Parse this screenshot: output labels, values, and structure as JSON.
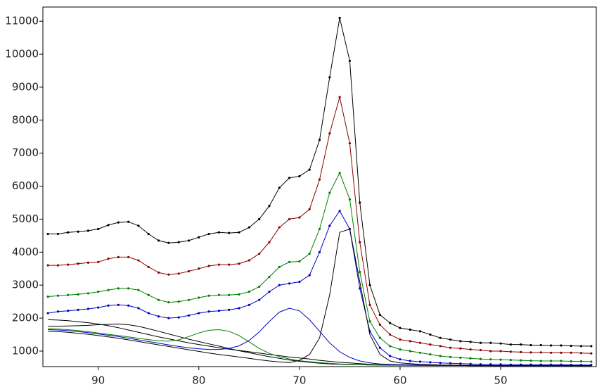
{
  "chart_data": {
    "type": "line",
    "x": [
      95,
      94,
      93,
      92,
      91,
      90,
      89,
      88,
      87,
      86,
      85,
      84,
      83,
      82,
      81,
      80,
      79,
      78,
      77,
      76,
      75,
      74,
      73,
      72,
      71,
      70,
      69,
      68,
      67,
      66,
      65,
      64,
      63,
      62,
      61,
      60,
      59,
      58,
      57,
      56,
      55,
      54,
      53,
      52,
      51,
      50,
      49,
      48,
      47,
      46,
      45,
      44,
      43,
      42,
      41
    ],
    "xlim": [
      95.5,
      40.5
    ],
    "xticks": [
      90,
      80,
      70,
      60,
      50
    ],
    "ylim": [
      530,
      11430
    ],
    "yticks": [
      1000,
      2000,
      3000,
      4000,
      5000,
      6000,
      7000,
      8000,
      9000,
      10000,
      11000
    ],
    "series": [
      {
        "color": "#000000",
        "markers": true,
        "values": [
          4550,
          4550,
          4600,
          4620,
          4650,
          4700,
          4820,
          4900,
          4920,
          4800,
          4550,
          4350,
          4280,
          4300,
          4350,
          4450,
          4550,
          4600,
          4580,
          4600,
          4750,
          5000,
          5400,
          5950,
          6250,
          6300,
          6500,
          7400,
          9300,
          11100,
          9800,
          5500,
          3000,
          2100,
          1850,
          1700,
          1650,
          1600,
          1500,
          1400,
          1350,
          1300,
          1280,
          1250,
          1250,
          1230,
          1200,
          1200,
          1180,
          1180,
          1170,
          1170,
          1160,
          1150,
          1150
        ]
      },
      {
        "color": "#8b0000",
        "markers": true,
        "values": [
          3600,
          3600,
          3620,
          3650,
          3680,
          3700,
          3800,
          3850,
          3850,
          3750,
          3550,
          3380,
          3320,
          3350,
          3420,
          3500,
          3580,
          3620,
          3620,
          3650,
          3750,
          3950,
          4300,
          4750,
          5000,
          5050,
          5300,
          6200,
          7600,
          8700,
          7300,
          4300,
          2400,
          1800,
          1500,
          1350,
          1300,
          1250,
          1200,
          1150,
          1100,
          1080,
          1050,
          1030,
          1000,
          1000,
          980,
          970,
          960,
          960,
          950,
          950,
          950,
          940,
          930
        ]
      },
      {
        "color": "#008000",
        "markers": true,
        "values": [
          2650,
          2680,
          2700,
          2720,
          2750,
          2800,
          2850,
          2900,
          2900,
          2850,
          2700,
          2550,
          2480,
          2500,
          2550,
          2620,
          2680,
          2700,
          2700,
          2720,
          2800,
          2950,
          3250,
          3550,
          3700,
          3720,
          3950,
          4700,
          5800,
          6400,
          5600,
          3400,
          1900,
          1400,
          1150,
          1050,
          1000,
          950,
          900,
          850,
          820,
          800,
          780,
          760,
          750,
          740,
          730,
          720,
          710,
          700,
          700,
          700,
          690,
          690,
          680
        ]
      },
      {
        "color": "#0000c0",
        "markers": true,
        "values": [
          2150,
          2200,
          2220,
          2250,
          2280,
          2320,
          2380,
          2400,
          2380,
          2300,
          2150,
          2050,
          2000,
          2020,
          2080,
          2150,
          2200,
          2220,
          2250,
          2300,
          2400,
          2550,
          2800,
          3000,
          3050,
          3100,
          3300,
          4000,
          4800,
          5250,
          4700,
          2900,
          1600,
          1100,
          850,
          750,
          700,
          680,
          660,
          640,
          630,
          620,
          610,
          600,
          600,
          600,
          590,
          590,
          590,
          590,
          590,
          590,
          580,
          580,
          580
        ]
      },
      {
        "color": "#000000",
        "markers": false,
        "values": [
          1950,
          1940,
          1920,
          1890,
          1860,
          1820,
          1770,
          1710,
          1640,
          1570,
          1500,
          1430,
          1370,
          1310,
          1250,
          1200,
          1150,
          1100,
          1060,
          1020,
          980,
          940,
          900,
          860,
          820,
          790,
          760,
          720,
          690,
          660,
          640,
          620,
          600,
          590,
          580,
          575,
          570,
          570,
          565,
          565,
          565,
          565,
          560,
          560,
          560,
          560,
          560,
          560,
          560,
          560,
          560,
          560,
          560,
          560,
          560
        ]
      },
      {
        "color": "#000000",
        "markers": false,
        "values": [
          1750,
          1750,
          1760,
          1770,
          1780,
          1800,
          1810,
          1820,
          1800,
          1750,
          1680,
          1600,
          1520,
          1440,
          1360,
          1290,
          1220,
          1150,
          1080,
          1010,
          950,
          890,
          830,
          780,
          730,
          690,
          660,
          630,
          610,
          600,
          590,
          585,
          580,
          575,
          570,
          570,
          570,
          565,
          565,
          565,
          565,
          565,
          560,
          560,
          560,
          560,
          560,
          560,
          560,
          560,
          560,
          560,
          560,
          560,
          560
        ]
      },
      {
        "color": "#008000",
        "markers": false,
        "values": [
          1680,
          1670,
          1650,
          1620,
          1590,
          1550,
          1510,
          1470,
          1430,
          1390,
          1350,
          1310,
          1300,
          1340,
          1440,
          1550,
          1630,
          1650,
          1600,
          1470,
          1280,
          1080,
          930,
          830,
          760,
          710,
          680,
          650,
          630,
          610,
          600,
          590,
          585,
          580,
          575,
          570,
          570,
          565,
          565,
          565,
          565,
          565,
          560,
          560,
          560,
          560,
          560,
          560,
          560,
          560,
          560,
          560,
          560,
          560,
          560
        ]
      },
      {
        "color": "#0000c0",
        "markers": false,
        "values": [
          1650,
          1640,
          1620,
          1590,
          1560,
          1520,
          1480,
          1440,
          1390,
          1340,
          1290,
          1240,
          1190,
          1140,
          1100,
          1070,
          1050,
          1050,
          1080,
          1160,
          1320,
          1580,
          1900,
          2180,
          2300,
          2220,
          1950,
          1600,
          1250,
          980,
          810,
          700,
          640,
          610,
          600,
          590,
          585,
          580,
          575,
          570,
          570,
          565,
          565,
          565,
          560,
          560,
          560,
          560,
          560,
          560,
          560,
          560,
          560,
          560,
          560
        ]
      },
      {
        "color": "#000000",
        "markers": false,
        "values": [
          1600,
          1590,
          1570,
          1540,
          1510,
          1470,
          1430,
          1390,
          1340,
          1290,
          1240,
          1190,
          1140,
          1090,
          1040,
          990,
          940,
          900,
          860,
          820,
          780,
          740,
          700,
          670,
          650,
          720,
          900,
          1400,
          2700,
          4600,
          4700,
          3100,
          1500,
          900,
          700,
          640,
          620,
          600,
          590,
          580,
          575,
          570,
          570,
          565,
          565,
          560,
          560,
          560,
          560,
          560,
          560,
          560,
          560,
          560,
          560
        ]
      }
    ]
  }
}
